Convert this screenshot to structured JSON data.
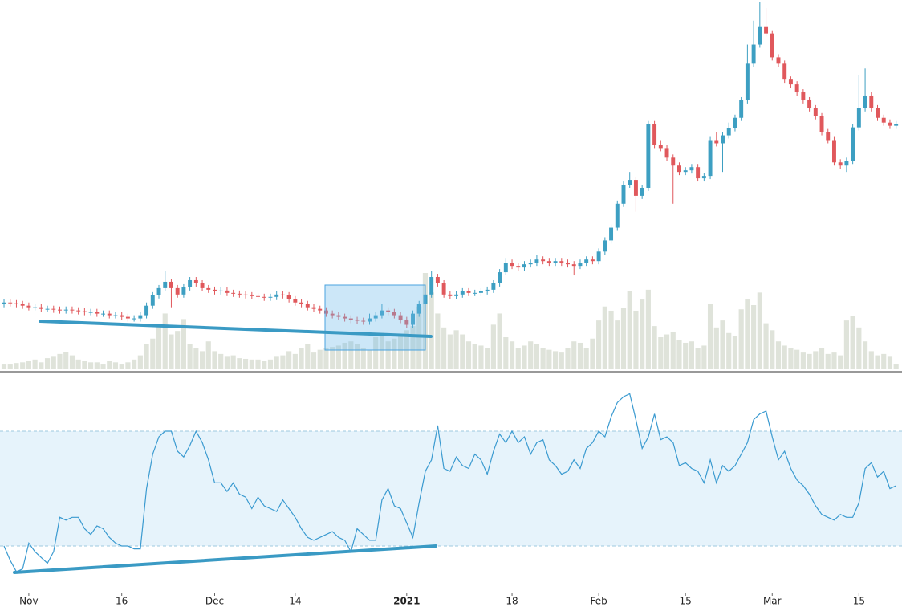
{
  "chart_data": {
    "type": "candlestick",
    "up_color": "#3d9fc2",
    "down_color": "#e0585c",
    "volume_color": "#d9ded3",
    "rsi_color": "#3a9ad0",
    "rsi_band": [
      30,
      70
    ],
    "xticks": [
      {
        "value": 4,
        "label": "Nov"
      },
      {
        "value": 19,
        "label": "16"
      },
      {
        "value": 34,
        "label": "Dec"
      },
      {
        "value": 47,
        "label": "14"
      },
      {
        "value": 65,
        "label": "2021"
      },
      {
        "value": 82,
        "label": "18"
      },
      {
        "value": 96,
        "label": "Feb"
      },
      {
        "value": 110,
        "label": "15"
      },
      {
        "value": 124,
        "label": "Mar"
      },
      {
        "value": 138,
        "label": "15"
      }
    ],
    "ohlc": [
      [
        84,
        90,
        80,
        86
      ],
      [
        86,
        90,
        81,
        85
      ],
      [
        85,
        89,
        80,
        84
      ],
      [
        84,
        88,
        78,
        82
      ],
      [
        82,
        86,
        76,
        80
      ],
      [
        80,
        84,
        76,
        80
      ],
      [
        80,
        84,
        74,
        78
      ],
      [
        78,
        82,
        74,
        78
      ],
      [
        78,
        82,
        73,
        77
      ],
      [
        77,
        81,
        72,
        76
      ],
      [
        76,
        81,
        72,
        77
      ],
      [
        77,
        81,
        72,
        76
      ],
      [
        76,
        80,
        71,
        75
      ],
      [
        75,
        79,
        70,
        74
      ],
      [
        74,
        78,
        70,
        74
      ],
      [
        74,
        78,
        68,
        72
      ],
      [
        72,
        76,
        68,
        72
      ],
      [
        72,
        76,
        66,
        70
      ],
      [
        70,
        74,
        66,
        70
      ],
      [
        70,
        74,
        64,
        68
      ],
      [
        68,
        72,
        62,
        66
      ],
      [
        66,
        70,
        62,
        66
      ],
      [
        66,
        74,
        62,
        70
      ],
      [
        70,
        86,
        66,
        82
      ],
      [
        82,
        99,
        78,
        95
      ],
      [
        95,
        108,
        91,
        104
      ],
      [
        104,
        126,
        100,
        112
      ],
      [
        112,
        116,
        80,
        104
      ],
      [
        104,
        108,
        92,
        96
      ],
      [
        96,
        109,
        92,
        105
      ],
      [
        105,
        118,
        101,
        114
      ],
      [
        114,
        118,
        106,
        110
      ],
      [
        110,
        114,
        100,
        104
      ],
      [
        104,
        108,
        98,
        102
      ],
      [
        102,
        106,
        96,
        100
      ],
      [
        100,
        105,
        96,
        101
      ],
      [
        101,
        105,
        94,
        98
      ],
      [
        98,
        102,
        93,
        97
      ],
      [
        97,
        101,
        92,
        96
      ],
      [
        96,
        100,
        91,
        95
      ],
      [
        95,
        99,
        90,
        94
      ],
      [
        94,
        98,
        89,
        93
      ],
      [
        93,
        97,
        88,
        92
      ],
      [
        92,
        97,
        88,
        93
      ],
      [
        93,
        100,
        89,
        96
      ],
      [
        96,
        100,
        91,
        95
      ],
      [
        95,
        99,
        86,
        90
      ],
      [
        90,
        94,
        82,
        86
      ],
      [
        86,
        90,
        80,
        84
      ],
      [
        84,
        88,
        76,
        80
      ],
      [
        80,
        84,
        74,
        78
      ],
      [
        78,
        82,
        72,
        76
      ],
      [
        76,
        80,
        68,
        72
      ],
      [
        72,
        76,
        66,
        70
      ],
      [
        70,
        74,
        64,
        68
      ],
      [
        68,
        72,
        62,
        66
      ],
      [
        66,
        70,
        60,
        64
      ],
      [
        64,
        68,
        59,
        63
      ],
      [
        63,
        67,
        58,
        62
      ],
      [
        62,
        72,
        58,
        66
      ],
      [
        66,
        74,
        62,
        70
      ],
      [
        70,
        84,
        66,
        76
      ],
      [
        76,
        80,
        70,
        74
      ],
      [
        74,
        78,
        66,
        70
      ],
      [
        70,
        74,
        60,
        64
      ],
      [
        64,
        68,
        54,
        58
      ],
      [
        58,
        76,
        54,
        72
      ],
      [
        72,
        88,
        68,
        84
      ],
      [
        84,
        100,
        80,
        96
      ],
      [
        96,
        126,
        92,
        118
      ],
      [
        118,
        122,
        106,
        110
      ],
      [
        110,
        114,
        92,
        96
      ],
      [
        96,
        100,
        90,
        94
      ],
      [
        94,
        100,
        90,
        96
      ],
      [
        96,
        104,
        92,
        100
      ],
      [
        100,
        104,
        94,
        98
      ],
      [
        98,
        102,
        94,
        98
      ],
      [
        98,
        104,
        94,
        100
      ],
      [
        100,
        106,
        96,
        102
      ],
      [
        102,
        114,
        98,
        110
      ],
      [
        110,
        128,
        106,
        124
      ],
      [
        124,
        142,
        120,
        136
      ],
      [
        136,
        140,
        128,
        132
      ],
      [
        132,
        136,
        126,
        130
      ],
      [
        130,
        138,
        126,
        134
      ],
      [
        134,
        140,
        130,
        136
      ],
      [
        136,
        146,
        132,
        140
      ],
      [
        140,
        144,
        134,
        138
      ],
      [
        138,
        142,
        132,
        136
      ],
      [
        136,
        142,
        132,
        138
      ],
      [
        138,
        142,
        132,
        136
      ],
      [
        136,
        140,
        130,
        134
      ],
      [
        134,
        138,
        120,
        132
      ],
      [
        132,
        140,
        128,
        136
      ],
      [
        136,
        144,
        132,
        140
      ],
      [
        140,
        144,
        134,
        138
      ],
      [
        138,
        154,
        134,
        150
      ],
      [
        150,
        168,
        146,
        164
      ],
      [
        164,
        184,
        160,
        180
      ],
      [
        180,
        214,
        176,
        210
      ],
      [
        210,
        238,
        206,
        234
      ],
      [
        234,
        250,
        230,
        240
      ],
      [
        240,
        244,
        200,
        220
      ],
      [
        220,
        234,
        216,
        230
      ],
      [
        230,
        314,
        226,
        310
      ],
      [
        310,
        314,
        280,
        284
      ],
      [
        284,
        290,
        276,
        280
      ],
      [
        280,
        284,
        264,
        268
      ],
      [
        268,
        272,
        210,
        258
      ],
      [
        258,
        262,
        246,
        250
      ],
      [
        250,
        256,
        246,
        252
      ],
      [
        252,
        260,
        248,
        256
      ],
      [
        256,
        260,
        238,
        242
      ],
      [
        242,
        249,
        238,
        245
      ],
      [
        245,
        294,
        241,
        290
      ],
      [
        290,
        300,
        282,
        286
      ],
      [
        286,
        300,
        250,
        296
      ],
      [
        296,
        312,
        292,
        305
      ],
      [
        305,
        322,
        301,
        318
      ],
      [
        318,
        344,
        314,
        340
      ],
      [
        340,
        410,
        336,
        386
      ],
      [
        386,
        440,
        382,
        410
      ],
      [
        410,
        464,
        406,
        432
      ],
      [
        432,
        456,
        420,
        424
      ],
      [
        424,
        428,
        390,
        394
      ],
      [
        394,
        398,
        382,
        386
      ],
      [
        386,
        390,
        362,
        366
      ],
      [
        366,
        370,
        356,
        360
      ],
      [
        360,
        364,
        346,
        350
      ],
      [
        350,
        354,
        336,
        340
      ],
      [
        340,
        344,
        326,
        330
      ],
      [
        330,
        334,
        316,
        320
      ],
      [
        320,
        324,
        296,
        300
      ],
      [
        300,
        304,
        286,
        290
      ],
      [
        290,
        294,
        258,
        262
      ],
      [
        262,
        266,
        254,
        258
      ],
      [
        258,
        268,
        250,
        264
      ],
      [
        264,
        310,
        260,
        306
      ],
      [
        306,
        372,
        302,
        330
      ],
      [
        330,
        380,
        326,
        346
      ],
      [
        346,
        350,
        326,
        330
      ],
      [
        330,
        334,
        314,
        318
      ],
      [
        318,
        322,
        308,
        312
      ],
      [
        312,
        316,
        304,
        308
      ],
      [
        308,
        314,
        304,
        310
      ]
    ],
    "volume": [
      8,
      8,
      9,
      10,
      12,
      14,
      10,
      16,
      18,
      22,
      25,
      20,
      14,
      12,
      10,
      10,
      8,
      12,
      10,
      8,
      10,
      14,
      20,
      36,
      44,
      64,
      80,
      50,
      55,
      72,
      36,
      30,
      26,
      40,
      26,
      22,
      18,
      20,
      16,
      15,
      14,
      14,
      12,
      14,
      18,
      20,
      26,
      22,
      30,
      36,
      24,
      28,
      30,
      32,
      34,
      38,
      40,
      36,
      30,
      28,
      46,
      52,
      40,
      44,
      50,
      56,
      62,
      90,
      138,
      110,
      80,
      60,
      50,
      56,
      50,
      40,
      36,
      34,
      30,
      64,
      80,
      46,
      40,
      30,
      34,
      40,
      36,
      30,
      28,
      26,
      24,
      30,
      40,
      38,
      30,
      44,
      70,
      90,
      84,
      70,
      88,
      112,
      84,
      100,
      114,
      62,
      46,
      50,
      54,
      42,
      38,
      40,
      30,
      34,
      94,
      60,
      70,
      52,
      48,
      86,
      100,
      92,
      110,
      66,
      56,
      40,
      34,
      30,
      28,
      24,
      22,
      26,
      30,
      22,
      24,
      20,
      70,
      76,
      60,
      40,
      26,
      20,
      22,
      18,
      8
    ],
    "rsi": [
      30,
      25,
      21,
      22,
      31,
      28,
      26,
      24,
      28,
      40,
      39,
      40,
      40,
      36,
      34,
      37,
      36,
      33,
      31,
      30,
      30,
      29,
      29,
      50,
      62,
      68,
      70,
      70,
      63,
      61,
      65,
      70,
      66,
      60,
      52,
      52,
      49,
      52,
      48,
      47,
      43,
      47,
      44,
      43,
      42,
      46,
      43,
      40,
      36,
      33,
      32,
      33,
      34,
      35,
      33,
      32,
      28,
      36,
      34,
      32,
      32,
      46,
      50,
      44,
      43,
      38,
      33,
      45,
      56,
      60,
      72,
      57,
      56,
      61,
      58,
      57,
      62,
      60,
      55,
      63,
      69,
      66,
      70,
      66,
      68,
      62,
      66,
      67,
      60,
      58,
      55,
      56,
      60,
      57,
      64,
      66,
      70,
      68,
      75,
      80,
      82,
      83,
      74,
      64,
      68,
      76,
      67,
      68,
      66,
      58,
      59,
      57,
      56,
      52,
      60,
      52,
      58,
      56,
      58,
      62,
      66,
      74,
      76,
      77,
      68,
      60,
      63,
      57,
      53,
      51,
      48,
      44,
      41,
      40,
      39,
      41,
      40,
      40,
      45,
      57,
      59,
      54,
      56,
      50,
      51
    ]
  }
}
